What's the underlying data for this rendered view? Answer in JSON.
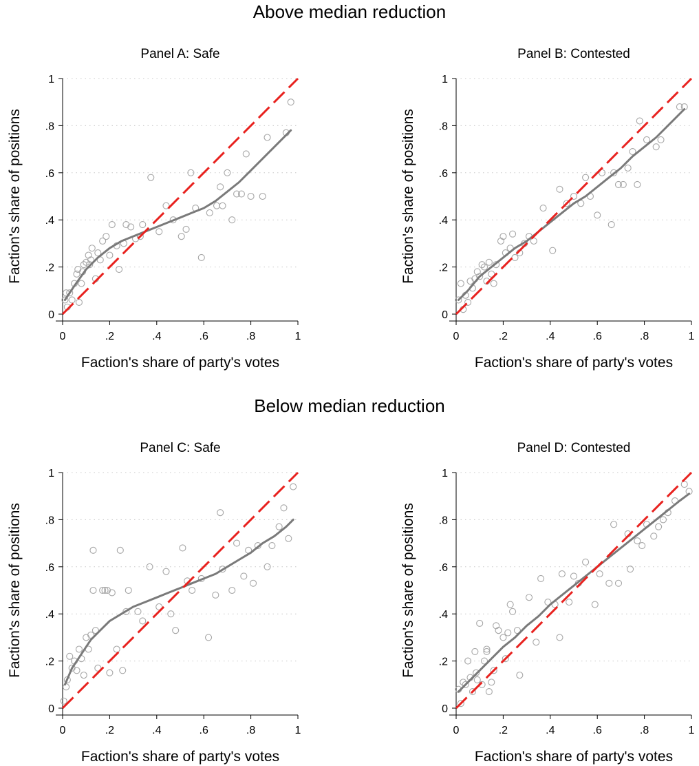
{
  "sections": [
    {
      "title": "Above median reduction"
    },
    {
      "title": "Below median reduction"
    }
  ],
  "colors": {
    "points": "#a6a6a6",
    "fit_line": "#7a7a7a",
    "diagonal": "#e8221f",
    "grid": "#c8c8c8"
  },
  "chart_data": [
    {
      "type": "scatter",
      "title": "Panel A: Safe",
      "xlabel": "Faction's share of party's votes",
      "ylabel": "Faction's share of positions",
      "xlim": [
        0,
        1
      ],
      "ylim": [
        0,
        1
      ],
      "xticks": [
        "0",
        ".2",
        ".4",
        ".6",
        ".8",
        "1"
      ],
      "yticks": [
        "0",
        ".2",
        ".4",
        ".6",
        ".8",
        "1"
      ],
      "grid": "horizontal dotted",
      "reference_line": {
        "style": "dashed",
        "from": [
          0,
          0
        ],
        "to": [
          1,
          1
        ]
      },
      "points": [
        [
          0.01,
          0.06
        ],
        [
          0.015,
          0.09
        ],
        [
          0.02,
          0.03
        ],
        [
          0.03,
          0.09
        ],
        [
          0.04,
          0.06
        ],
        [
          0.05,
          0.13
        ],
        [
          0.06,
          0.17
        ],
        [
          0.065,
          0.19
        ],
        [
          0.07,
          0.05
        ],
        [
          0.08,
          0.13
        ],
        [
          0.085,
          0.18
        ],
        [
          0.09,
          0.21
        ],
        [
          0.1,
          0.22
        ],
        [
          0.11,
          0.25
        ],
        [
          0.115,
          0.21
        ],
        [
          0.12,
          0.23
        ],
        [
          0.125,
          0.28
        ],
        [
          0.14,
          0.15
        ],
        [
          0.15,
          0.26
        ],
        [
          0.16,
          0.23
        ],
        [
          0.17,
          0.31
        ],
        [
          0.185,
          0.33
        ],
        [
          0.2,
          0.25
        ],
        [
          0.21,
          0.38
        ],
        [
          0.23,
          0.29
        ],
        [
          0.24,
          0.19
        ],
        [
          0.26,
          0.3
        ],
        [
          0.27,
          0.38
        ],
        [
          0.29,
          0.37
        ],
        [
          0.31,
          0.32
        ],
        [
          0.33,
          0.33
        ],
        [
          0.34,
          0.38
        ],
        [
          0.375,
          0.58
        ],
        [
          0.41,
          0.35
        ],
        [
          0.44,
          0.46
        ],
        [
          0.47,
          0.4
        ],
        [
          0.505,
          0.33
        ],
        [
          0.525,
          0.36
        ],
        [
          0.545,
          0.6
        ],
        [
          0.565,
          0.45
        ],
        [
          0.59,
          0.24
        ],
        [
          0.625,
          0.43
        ],
        [
          0.655,
          0.46
        ],
        [
          0.67,
          0.54
        ],
        [
          0.68,
          0.46
        ],
        [
          0.7,
          0.6
        ],
        [
          0.72,
          0.4
        ],
        [
          0.74,
          0.51
        ],
        [
          0.76,
          0.51
        ],
        [
          0.78,
          0.68
        ],
        [
          0.8,
          0.5
        ],
        [
          0.85,
          0.5
        ],
        [
          0.87,
          0.75
        ],
        [
          0.95,
          0.77
        ],
        [
          0.97,
          0.9
        ]
      ],
      "fit": [
        [
          0.01,
          0.06
        ],
        [
          0.05,
          0.12
        ],
        [
          0.1,
          0.19
        ],
        [
          0.15,
          0.24
        ],
        [
          0.2,
          0.28
        ],
        [
          0.25,
          0.31
        ],
        [
          0.3,
          0.33
        ],
        [
          0.35,
          0.35
        ],
        [
          0.4,
          0.37
        ],
        [
          0.45,
          0.39
        ],
        [
          0.5,
          0.41
        ],
        [
          0.55,
          0.43
        ],
        [
          0.6,
          0.45
        ],
        [
          0.65,
          0.48
        ],
        [
          0.7,
          0.52
        ],
        [
          0.75,
          0.56
        ],
        [
          0.8,
          0.61
        ],
        [
          0.85,
          0.66
        ],
        [
          0.9,
          0.71
        ],
        [
          0.95,
          0.76
        ],
        [
          0.97,
          0.78
        ]
      ]
    },
    {
      "type": "scatter",
      "title": "Panel B: Contested",
      "xlabel": "Faction's share of party's votes",
      "ylabel": "Faction's share of positions",
      "xlim": [
        0,
        1
      ],
      "ylim": [
        0,
        1
      ],
      "xticks": [
        "0",
        ".2",
        ".4",
        ".6",
        ".8",
        "1"
      ],
      "yticks": [
        "0",
        ".2",
        ".4",
        ".6",
        ".8",
        "1"
      ],
      "grid": "horizontal dotted",
      "reference_line": {
        "style": "dashed",
        "from": [
          0,
          0
        ],
        "to": [
          1,
          1
        ]
      },
      "points": [
        [
          0.01,
          0.06
        ],
        [
          0.02,
          0.13
        ],
        [
          0.03,
          0.02
        ],
        [
          0.04,
          0.08
        ],
        [
          0.05,
          0.05
        ],
        [
          0.06,
          0.14
        ],
        [
          0.07,
          0.11
        ],
        [
          0.08,
          0.15
        ],
        [
          0.09,
          0.18
        ],
        [
          0.1,
          0.16
        ],
        [
          0.11,
          0.21
        ],
        [
          0.12,
          0.2
        ],
        [
          0.13,
          0.14
        ],
        [
          0.14,
          0.22
        ],
        [
          0.15,
          0.17
        ],
        [
          0.16,
          0.13
        ],
        [
          0.17,
          0.21
        ],
        [
          0.19,
          0.31
        ],
        [
          0.2,
          0.33
        ],
        [
          0.21,
          0.26
        ],
        [
          0.23,
          0.28
        ],
        [
          0.24,
          0.34
        ],
        [
          0.25,
          0.24
        ],
        [
          0.27,
          0.26
        ],
        [
          0.29,
          0.3
        ],
        [
          0.31,
          0.33
        ],
        [
          0.33,
          0.31
        ],
        [
          0.37,
          0.45
        ],
        [
          0.41,
          0.27
        ],
        [
          0.44,
          0.53
        ],
        [
          0.47,
          0.47
        ],
        [
          0.5,
          0.5
        ],
        [
          0.53,
          0.47
        ],
        [
          0.55,
          0.58
        ],
        [
          0.57,
          0.5
        ],
        [
          0.6,
          0.42
        ],
        [
          0.62,
          0.6
        ],
        [
          0.66,
          0.38
        ],
        [
          0.67,
          0.6
        ],
        [
          0.69,
          0.55
        ],
        [
          0.71,
          0.55
        ],
        [
          0.73,
          0.62
        ],
        [
          0.75,
          0.69
        ],
        [
          0.77,
          0.55
        ],
        [
          0.78,
          0.82
        ],
        [
          0.81,
          0.74
        ],
        [
          0.85,
          0.71
        ],
        [
          0.87,
          0.74
        ],
        [
          0.95,
          0.88
        ],
        [
          0.97,
          0.88
        ]
      ],
      "fit": [
        [
          0.01,
          0.06
        ],
        [
          0.05,
          0.1
        ],
        [
          0.1,
          0.16
        ],
        [
          0.15,
          0.2
        ],
        [
          0.2,
          0.24
        ],
        [
          0.25,
          0.28
        ],
        [
          0.3,
          0.31
        ],
        [
          0.35,
          0.35
        ],
        [
          0.4,
          0.39
        ],
        [
          0.45,
          0.43
        ],
        [
          0.5,
          0.47
        ],
        [
          0.55,
          0.5
        ],
        [
          0.6,
          0.54
        ],
        [
          0.65,
          0.58
        ],
        [
          0.7,
          0.62
        ],
        [
          0.75,
          0.67
        ],
        [
          0.8,
          0.71
        ],
        [
          0.85,
          0.75
        ],
        [
          0.9,
          0.8
        ],
        [
          0.95,
          0.85
        ],
        [
          0.97,
          0.87
        ]
      ]
    },
    {
      "type": "scatter",
      "title": "Panel C: Safe",
      "xlabel": "Faction's share of party's votes",
      "ylabel": "Faction's share of positions",
      "xlim": [
        0,
        1
      ],
      "ylim": [
        0,
        1
      ],
      "xticks": [
        "0",
        ".2",
        ".4",
        ".6",
        ".8",
        "1"
      ],
      "yticks": [
        "0",
        ".2",
        ".4",
        ".6",
        ".8",
        "1"
      ],
      "grid": "horizontal dotted",
      "reference_line": {
        "style": "dashed",
        "from": [
          0,
          0
        ],
        "to": [
          1,
          1
        ]
      },
      "points": [
        [
          0.005,
          0.03
        ],
        [
          0.015,
          0.09
        ],
        [
          0.02,
          0.12
        ],
        [
          0.03,
          0.22
        ],
        [
          0.04,
          0.17
        ],
        [
          0.05,
          0.2
        ],
        [
          0.06,
          0.16
        ],
        [
          0.07,
          0.25
        ],
        [
          0.08,
          0.21
        ],
        [
          0.09,
          0.14
        ],
        [
          0.1,
          0.3
        ],
        [
          0.11,
          0.25
        ],
        [
          0.12,
          0.31
        ],
        [
          0.13,
          0.5
        ],
        [
          0.13,
          0.67
        ],
        [
          0.14,
          0.33
        ],
        [
          0.15,
          0.17
        ],
        [
          0.17,
          0.5
        ],
        [
          0.18,
          0.5
        ],
        [
          0.19,
          0.5
        ],
        [
          0.2,
          0.15
        ],
        [
          0.21,
          0.49
        ],
        [
          0.23,
          0.25
        ],
        [
          0.245,
          0.67
        ],
        [
          0.255,
          0.16
        ],
        [
          0.27,
          0.41
        ],
        [
          0.28,
          0.5
        ],
        [
          0.32,
          0.41
        ],
        [
          0.34,
          0.37
        ],
        [
          0.37,
          0.6
        ],
        [
          0.41,
          0.43
        ],
        [
          0.44,
          0.58
        ],
        [
          0.46,
          0.4
        ],
        [
          0.48,
          0.33
        ],
        [
          0.51,
          0.68
        ],
        [
          0.53,
          0.54
        ],
        [
          0.55,
          0.5
        ],
        [
          0.59,
          0.55
        ],
        [
          0.62,
          0.3
        ],
        [
          0.65,
          0.48
        ],
        [
          0.67,
          0.83
        ],
        [
          0.68,
          0.59
        ],
        [
          0.72,
          0.5
        ],
        [
          0.74,
          0.7
        ],
        [
          0.77,
          0.56
        ],
        [
          0.79,
          0.67
        ],
        [
          0.81,
          0.53
        ],
        [
          0.83,
          0.69
        ],
        [
          0.87,
          0.6
        ],
        [
          0.89,
          0.69
        ],
        [
          0.92,
          0.77
        ],
        [
          0.94,
          0.85
        ],
        [
          0.96,
          0.72
        ],
        [
          0.98,
          0.94
        ]
      ],
      "fit": [
        [
          0.01,
          0.1
        ],
        [
          0.04,
          0.17
        ],
        [
          0.08,
          0.23
        ],
        [
          0.12,
          0.29
        ],
        [
          0.16,
          0.33
        ],
        [
          0.2,
          0.37
        ],
        [
          0.25,
          0.4
        ],
        [
          0.3,
          0.43
        ],
        [
          0.35,
          0.45
        ],
        [
          0.4,
          0.47
        ],
        [
          0.45,
          0.49
        ],
        [
          0.5,
          0.51
        ],
        [
          0.55,
          0.53
        ],
        [
          0.6,
          0.55
        ],
        [
          0.65,
          0.57
        ],
        [
          0.7,
          0.6
        ],
        [
          0.75,
          0.63
        ],
        [
          0.8,
          0.66
        ],
        [
          0.85,
          0.7
        ],
        [
          0.9,
          0.73
        ],
        [
          0.95,
          0.77
        ],
        [
          0.98,
          0.8
        ]
      ]
    },
    {
      "type": "scatter",
      "title": "Panel D: Contested",
      "xlabel": "Faction's share of party's votes",
      "ylabel": "Faction's share of positions",
      "xlim": [
        0,
        1
      ],
      "ylim": [
        0,
        1
      ],
      "xticks": [
        "0",
        ".2",
        ".4",
        ".6",
        ".8",
        "1"
      ],
      "yticks": [
        "0",
        ".2",
        ".4",
        ".6",
        ".8",
        "1"
      ],
      "grid": "horizontal dotted",
      "reference_line": {
        "style": "dashed",
        "from": [
          0,
          0
        ],
        "to": [
          1,
          1
        ]
      },
      "points": [
        [
          0.01,
          0.08
        ],
        [
          0.02,
          0.02
        ],
        [
          0.03,
          0.11
        ],
        [
          0.04,
          0.1
        ],
        [
          0.05,
          0.2
        ],
        [
          0.06,
          0.13
        ],
        [
          0.07,
          0.07
        ],
        [
          0.08,
          0.24
        ],
        [
          0.085,
          0.15
        ],
        [
          0.09,
          0.12
        ],
        [
          0.1,
          0.36
        ],
        [
          0.11,
          0.1
        ],
        [
          0.12,
          0.2
        ],
        [
          0.13,
          0.24
        ],
        [
          0.13,
          0.25
        ],
        [
          0.14,
          0.07
        ],
        [
          0.15,
          0.11
        ],
        [
          0.16,
          0.16
        ],
        [
          0.17,
          0.35
        ],
        [
          0.18,
          0.33
        ],
        [
          0.2,
          0.3
        ],
        [
          0.21,
          0.21
        ],
        [
          0.22,
          0.32
        ],
        [
          0.23,
          0.44
        ],
        [
          0.24,
          0.41
        ],
        [
          0.26,
          0.33
        ],
        [
          0.27,
          0.14
        ],
        [
          0.31,
          0.47
        ],
        [
          0.34,
          0.28
        ],
        [
          0.36,
          0.55
        ],
        [
          0.39,
          0.45
        ],
        [
          0.42,
          0.44
        ],
        [
          0.44,
          0.3
        ],
        [
          0.45,
          0.57
        ],
        [
          0.48,
          0.45
        ],
        [
          0.5,
          0.56
        ],
        [
          0.52,
          0.53
        ],
        [
          0.55,
          0.62
        ],
        [
          0.59,
          0.44
        ],
        [
          0.61,
          0.57
        ],
        [
          0.65,
          0.53
        ],
        [
          0.67,
          0.78
        ],
        [
          0.69,
          0.53
        ],
        [
          0.73,
          0.74
        ],
        [
          0.74,
          0.59
        ],
        [
          0.77,
          0.71
        ],
        [
          0.79,
          0.69
        ],
        [
          0.81,
          0.78
        ],
        [
          0.84,
          0.73
        ],
        [
          0.86,
          0.77
        ],
        [
          0.88,
          0.8
        ],
        [
          0.9,
          0.83
        ],
        [
          0.93,
          0.88
        ],
        [
          0.97,
          0.95
        ],
        [
          0.99,
          0.92
        ]
      ],
      "fit": [
        [
          0.01,
          0.07
        ],
        [
          0.05,
          0.11
        ],
        [
          0.1,
          0.16
        ],
        [
          0.15,
          0.21
        ],
        [
          0.2,
          0.26
        ],
        [
          0.25,
          0.3
        ],
        [
          0.3,
          0.35
        ],
        [
          0.35,
          0.39
        ],
        [
          0.4,
          0.44
        ],
        [
          0.45,
          0.48
        ],
        [
          0.5,
          0.52
        ],
        [
          0.55,
          0.56
        ],
        [
          0.6,
          0.6
        ],
        [
          0.65,
          0.64
        ],
        [
          0.7,
          0.68
        ],
        [
          0.75,
          0.72
        ],
        [
          0.8,
          0.76
        ],
        [
          0.85,
          0.8
        ],
        [
          0.9,
          0.84
        ],
        [
          0.95,
          0.88
        ],
        [
          0.99,
          0.91
        ]
      ]
    }
  ]
}
